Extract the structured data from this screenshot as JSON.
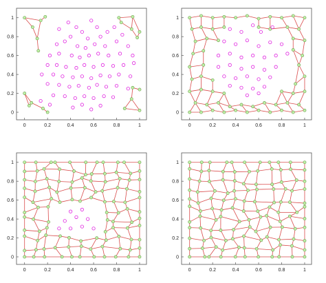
{
  "colors": {
    "unvisited_marker": "#e020e0",
    "mesh_line": "#d94a4a",
    "node_fill": "#bff0a8",
    "node_edge": "#6a9a48",
    "axis": "#555555"
  },
  "chart_data": [
    {
      "type": "scatter",
      "title": "",
      "xlabel": "",
      "ylabel": "",
      "xlim": [
        -0.07,
        1.06
      ],
      "ylim": [
        -0.08,
        1.1
      ],
      "xticks": [
        "0",
        "0.2",
        "0.4",
        "0.6",
        "0.8",
        "1"
      ],
      "yticks": [
        "0",
        "0.2",
        "0.4",
        "0.6",
        "0.8",
        "1"
      ],
      "grid": false,
      "unvisited_points": [
        [
          0.38,
          0.95
        ],
        [
          0.45,
          0.9
        ],
        [
          0.58,
          0.97
        ],
        [
          0.63,
          0.9
        ],
        [
          0.72,
          0.85
        ],
        [
          0.3,
          0.88
        ],
        [
          0.4,
          0.8
        ],
        [
          0.5,
          0.85
        ],
        [
          0.55,
          0.78
        ],
        [
          0.66,
          0.8
        ],
        [
          0.78,
          0.9
        ],
        [
          0.85,
          0.82
        ],
        [
          0.28,
          0.72
        ],
        [
          0.35,
          0.75
        ],
        [
          0.46,
          0.7
        ],
        [
          0.53,
          0.68
        ],
        [
          0.61,
          0.72
        ],
        [
          0.7,
          0.7
        ],
        [
          0.8,
          0.75
        ],
        [
          0.9,
          0.7
        ],
        [
          0.22,
          0.6
        ],
        [
          0.3,
          0.62
        ],
        [
          0.41,
          0.6
        ],
        [
          0.48,
          0.58
        ],
        [
          0.56,
          0.6
        ],
        [
          0.64,
          0.62
        ],
        [
          0.73,
          0.6
        ],
        [
          0.83,
          0.62
        ],
        [
          0.94,
          0.6
        ],
        [
          0.2,
          0.5
        ],
        [
          0.28,
          0.5
        ],
        [
          0.36,
          0.48
        ],
        [
          0.45,
          0.47
        ],
        [
          0.52,
          0.5
        ],
        [
          0.6,
          0.48
        ],
        [
          0.68,
          0.5
        ],
        [
          0.77,
          0.49
        ],
        [
          0.86,
          0.5
        ],
        [
          0.95,
          0.52
        ],
        [
          0.15,
          0.4
        ],
        [
          0.25,
          0.4
        ],
        [
          0.33,
          0.38
        ],
        [
          0.42,
          0.37
        ],
        [
          0.5,
          0.38
        ],
        [
          0.58,
          0.36
        ],
        [
          0.66,
          0.39
        ],
        [
          0.74,
          0.38
        ],
        [
          0.82,
          0.4
        ],
        [
          0.92,
          0.38
        ],
        [
          0.2,
          0.3
        ],
        [
          0.3,
          0.29
        ],
        [
          0.39,
          0.27
        ],
        [
          0.47,
          0.28
        ],
        [
          0.56,
          0.26
        ],
        [
          0.63,
          0.29
        ],
        [
          0.71,
          0.27
        ],
        [
          0.8,
          0.28
        ],
        [
          0.9,
          0.25
        ],
        [
          0.25,
          0.18
        ],
        [
          0.35,
          0.17
        ],
        [
          0.44,
          0.15
        ],
        [
          0.52,
          0.17
        ],
        [
          0.6,
          0.15
        ],
        [
          0.69,
          0.17
        ],
        [
          0.77,
          0.16
        ],
        [
          0.42,
          0.05
        ],
        [
          0.5,
          0.08
        ],
        [
          0.58,
          0.03
        ],
        [
          0.66,
          0.07
        ],
        [
          0.14,
          0.12
        ],
        [
          0.22,
          0.08
        ]
      ],
      "mesh_nodes": [
        [
          0,
          1.0
        ],
        [
          0.07,
          0.9
        ],
        [
          0.14,
          0.97
        ],
        [
          0.18,
          1.01
        ],
        [
          0.11,
          0.78
        ],
        [
          0.12,
          0.65
        ],
        [
          0.82,
          1.0
        ],
        [
          0.94,
          1.01
        ],
        [
          0.93,
          0.88
        ],
        [
          0.98,
          0.79
        ],
        [
          0.84,
          0.95
        ],
        [
          1.0,
          0.85
        ],
        [
          0.0,
          0.2
        ],
        [
          0.06,
          0.1
        ],
        [
          0.16,
          0.04
        ],
        [
          0.2,
          0.0
        ],
        [
          0.94,
          0.26
        ],
        [
          1.0,
          0.24
        ],
        [
          0.93,
          0.14
        ],
        [
          0.87,
          0.04
        ],
        [
          1.0,
          0.02
        ],
        [
          0.04,
          0.07
        ]
      ],
      "mesh_edges": [
        [
          0,
          1
        ],
        [
          0,
          2
        ],
        [
          2,
          3
        ],
        [
          1,
          4
        ],
        [
          4,
          5
        ],
        [
          2,
          4
        ],
        [
          6,
          7
        ],
        [
          7,
          8
        ],
        [
          6,
          10
        ],
        [
          10,
          8
        ],
        [
          8,
          9
        ],
        [
          9,
          11
        ],
        [
          7,
          11
        ],
        [
          12,
          13
        ],
        [
          13,
          14
        ],
        [
          14,
          15
        ],
        [
          12,
          21
        ],
        [
          21,
          13
        ],
        [
          16,
          17
        ],
        [
          16,
          18
        ],
        [
          18,
          19
        ],
        [
          19,
          20
        ],
        [
          18,
          20
        ]
      ]
    },
    {
      "type": "scatter",
      "title": "",
      "xlabel": "",
      "ylabel": "",
      "xlim": [
        -0.07,
        1.06
      ],
      "ylim": [
        -0.08,
        1.1
      ],
      "xticks": [
        "0",
        "0.2",
        "0.4",
        "0.6",
        "0.8",
        "1"
      ],
      "yticks": [
        "0",
        "0.2",
        "0.4",
        "0.6",
        "0.8",
        "1"
      ],
      "grid": false,
      "unvisited_points": [
        [
          0.35,
          0.88
        ],
        [
          0.45,
          0.85
        ],
        [
          0.55,
          0.92
        ],
        [
          0.62,
          0.85
        ],
        [
          0.72,
          0.9
        ],
        [
          0.3,
          0.75
        ],
        [
          0.4,
          0.72
        ],
        [
          0.5,
          0.76
        ],
        [
          0.6,
          0.7
        ],
        [
          0.7,
          0.74
        ],
        [
          0.8,
          0.72
        ],
        [
          0.25,
          0.6
        ],
        [
          0.35,
          0.62
        ],
        [
          0.45,
          0.58
        ],
        [
          0.55,
          0.6
        ],
        [
          0.65,
          0.58
        ],
        [
          0.75,
          0.6
        ],
        [
          0.85,
          0.62
        ],
        [
          0.25,
          0.48
        ],
        [
          0.35,
          0.5
        ],
        [
          0.45,
          0.46
        ],
        [
          0.55,
          0.48
        ],
        [
          0.65,
          0.45
        ],
        [
          0.75,
          0.48
        ],
        [
          0.3,
          0.38
        ],
        [
          0.4,
          0.36
        ],
        [
          0.5,
          0.38
        ],
        [
          0.6,
          0.35
        ],
        [
          0.7,
          0.37
        ],
        [
          0.35,
          0.28
        ],
        [
          0.45,
          0.26
        ],
        [
          0.55,
          0.25
        ],
        [
          0.65,
          0.27
        ],
        [
          0.5,
          0.18
        ],
        [
          0.6,
          0.2
        ]
      ],
      "mesh_nodes": [
        [
          0,
          1.0
        ],
        [
          0.1,
          1.02
        ],
        [
          0.2,
          1.0
        ],
        [
          0.3,
          1.01
        ],
        [
          0.4,
          1.0
        ],
        [
          0.5,
          1.02
        ],
        [
          0.6,
          0.99
        ],
        [
          0.7,
          1.01
        ],
        [
          0.8,
          1.0
        ],
        [
          0.9,
          1.02
        ],
        [
          1.0,
          1.0
        ],
        [
          0.02,
          0.88
        ],
        [
          0.1,
          0.9
        ],
        [
          0.2,
          0.88
        ],
        [
          0.3,
          0.9
        ],
        [
          0.6,
          0.9
        ],
        [
          0.7,
          0.88
        ],
        [
          0.85,
          0.9
        ],
        [
          0.95,
          0.88
        ],
        [
          0.05,
          0.75
        ],
        [
          0.15,
          0.78
        ],
        [
          0.25,
          0.76
        ],
        [
          0.9,
          0.78
        ],
        [
          1.0,
          0.76
        ],
        [
          0.03,
          0.62
        ],
        [
          0.12,
          0.65
        ],
        [
          0.9,
          0.66
        ],
        [
          0.98,
          0.6
        ],
        [
          0.0,
          0.48
        ],
        [
          0.12,
          0.5
        ],
        [
          0.95,
          0.5
        ],
        [
          0.02,
          0.35
        ],
        [
          0.1,
          0.38
        ],
        [
          0.2,
          0.34
        ],
        [
          1.0,
          0.38
        ],
        [
          0.92,
          0.3
        ],
        [
          0.0,
          0.22
        ],
        [
          0.1,
          0.24
        ],
        [
          0.2,
          0.22
        ],
        [
          0.3,
          0.2
        ],
        [
          0.8,
          0.22
        ],
        [
          0.9,
          0.2
        ],
        [
          1.0,
          0.22
        ],
        [
          0.05,
          0.1
        ],
        [
          0.15,
          0.08
        ],
        [
          0.25,
          0.1
        ],
        [
          0.35,
          0.06
        ],
        [
          0.45,
          0.08
        ],
        [
          0.55,
          0.06
        ],
        [
          0.65,
          0.1
        ],
        [
          0.75,
          0.08
        ],
        [
          0.85,
          0.1
        ],
        [
          0.95,
          0.08
        ],
        [
          0.0,
          0.0
        ],
        [
          0.1,
          0.0
        ],
        [
          0.2,
          0.02
        ],
        [
          0.3,
          0.0
        ],
        [
          0.4,
          0.02
        ],
        [
          0.5,
          0.0
        ],
        [
          0.6,
          0.02
        ],
        [
          0.7,
          0.0
        ],
        [
          0.8,
          0.02
        ],
        [
          0.9,
          0.0
        ],
        [
          1.0,
          0.02
        ]
      ],
      "mesh_edges": [
        [
          0,
          1
        ],
        [
          1,
          2
        ],
        [
          2,
          3
        ],
        [
          3,
          4
        ],
        [
          4,
          5
        ],
        [
          5,
          6
        ],
        [
          6,
          7
        ],
        [
          7,
          8
        ],
        [
          8,
          9
        ],
        [
          9,
          10
        ],
        [
          0,
          11
        ],
        [
          1,
          12
        ],
        [
          2,
          13
        ],
        [
          3,
          14
        ],
        [
          6,
          15
        ],
        [
          7,
          16
        ],
        [
          8,
          17
        ],
        [
          9,
          18
        ],
        [
          10,
          18
        ],
        [
          11,
          12
        ],
        [
          12,
          13
        ],
        [
          13,
          14
        ],
        [
          15,
          16
        ],
        [
          16,
          17
        ],
        [
          17,
          18
        ],
        [
          11,
          19
        ],
        [
          12,
          20
        ],
        [
          13,
          21
        ],
        [
          17,
          22
        ],
        [
          18,
          23
        ],
        [
          19,
          20
        ],
        [
          20,
          21
        ],
        [
          22,
          23
        ],
        [
          19,
          24
        ],
        [
          20,
          25
        ],
        [
          22,
          26
        ],
        [
          23,
          27
        ],
        [
          24,
          25
        ],
        [
          26,
          27
        ],
        [
          24,
          28
        ],
        [
          25,
          29
        ],
        [
          26,
          30
        ],
        [
          27,
          30
        ],
        [
          28,
          29
        ],
        [
          28,
          31
        ],
        [
          29,
          32
        ],
        [
          30,
          34
        ],
        [
          30,
          35
        ],
        [
          31,
          32
        ],
        [
          32,
          33
        ],
        [
          34,
          35
        ],
        [
          31,
          36
        ],
        [
          32,
          37
        ],
        [
          33,
          38
        ],
        [
          35,
          41
        ],
        [
          34,
          42
        ],
        [
          36,
          37
        ],
        [
          37,
          38
        ],
        [
          38,
          39
        ],
        [
          40,
          41
        ],
        [
          41,
          42
        ],
        [
          36,
          43
        ],
        [
          37,
          43
        ],
        [
          38,
          44
        ],
        [
          39,
          45
        ],
        [
          40,
          51
        ],
        [
          41,
          51
        ],
        [
          42,
          52
        ],
        [
          43,
          44
        ],
        [
          44,
          45
        ],
        [
          45,
          46
        ],
        [
          46,
          47
        ],
        [
          47,
          48
        ],
        [
          48,
          49
        ],
        [
          49,
          50
        ],
        [
          50,
          51
        ],
        [
          51,
          52
        ],
        [
          43,
          53
        ],
        [
          43,
          54
        ],
        [
          44,
          55
        ],
        [
          45,
          56
        ],
        [
          46,
          57
        ],
        [
          47,
          58
        ],
        [
          48,
          59
        ],
        [
          49,
          60
        ],
        [
          50,
          61
        ],
        [
          51,
          62
        ],
        [
          52,
          63
        ],
        [
          53,
          54
        ],
        [
          54,
          55
        ],
        [
          55,
          56
        ],
        [
          56,
          57
        ],
        [
          57,
          58
        ],
        [
          58,
          59
        ],
        [
          59,
          60
        ],
        [
          60,
          61
        ],
        [
          61,
          62
        ],
        [
          62,
          63
        ],
        [
          39,
          46
        ],
        [
          40,
          50
        ]
      ]
    },
    {
      "type": "scatter",
      "title": "",
      "xlabel": "",
      "ylabel": "",
      "xlim": [
        -0.07,
        1.06
      ],
      "ylim": [
        -0.08,
        1.1
      ],
      "xticks": [
        "0",
        "0.2",
        "0.4",
        "0.6",
        "0.8",
        "1"
      ],
      "yticks": [
        "0",
        "0.2",
        "0.4",
        "0.6",
        "0.8",
        "1"
      ],
      "grid": false,
      "unvisited_points": [
        [
          0.4,
          0.48
        ],
        [
          0.5,
          0.5
        ],
        [
          0.45,
          0.42
        ],
        [
          0.35,
          0.38
        ],
        [
          0.55,
          0.4
        ],
        [
          0.3,
          0.3
        ],
        [
          0.4,
          0.3
        ],
        [
          0.5,
          0.32
        ],
        [
          0.6,
          0.3
        ]
      ],
      "mesh_nodes": [],
      "mesh_edges": [],
      "mesh_grid": {
        "cols": 11,
        "rows": 11,
        "empty_region": [
          0.27,
          0.22,
          0.63,
          0.55
        ]
      }
    },
    {
      "type": "scatter",
      "title": "",
      "xlabel": "",
      "ylabel": "",
      "xlim": [
        -0.07,
        1.06
      ],
      "ylim": [
        -0.08,
        1.1
      ],
      "xticks": [
        "0",
        "0.2",
        "0.4",
        "0.6",
        "0.8",
        "1"
      ],
      "yticks": [
        "0",
        "0.2",
        "0.4",
        "0.6",
        "0.8",
        "1"
      ],
      "grid": false,
      "unvisited_points": [],
      "mesh_nodes": [],
      "mesh_edges": [],
      "mesh_grid": {
        "cols": 11,
        "rows": 11,
        "empty_region": null
      }
    }
  ]
}
